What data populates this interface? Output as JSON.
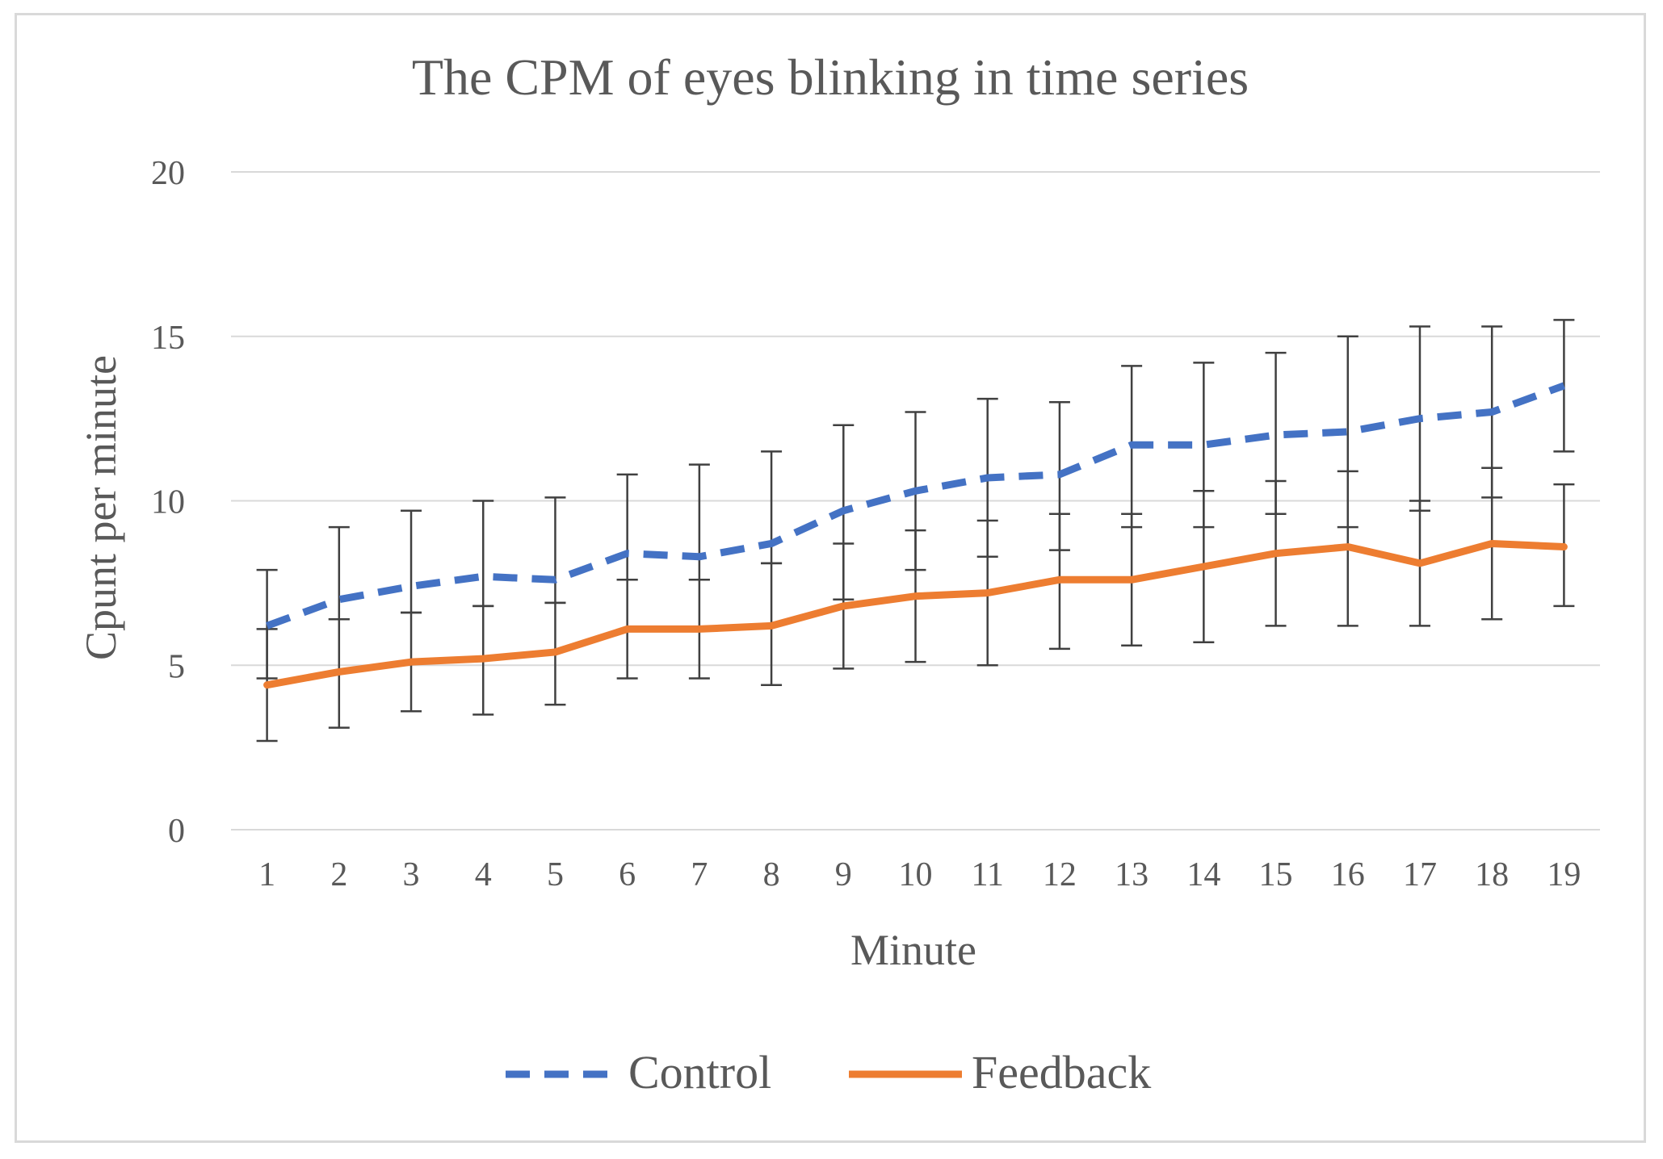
{
  "chart_data": {
    "type": "line",
    "title": "The CPM of eyes blinking in time series",
    "xlabel": "Minute",
    "ylabel": "Cpunt per minute",
    "ylim": [
      0,
      20
    ],
    "yticks": [
      0,
      5,
      10,
      15,
      20
    ],
    "grid": true,
    "legend_position": "bottom",
    "categories": [
      "1",
      "2",
      "3",
      "4",
      "5",
      "6",
      "7",
      "8",
      "9",
      "10",
      "11",
      "12",
      "13",
      "14",
      "15",
      "16",
      "17",
      "18",
      "19"
    ],
    "series": [
      {
        "name": "Control",
        "color": "#4472c4",
        "dash": "dashed",
        "values": [
          6.2,
          7.0,
          7.4,
          7.7,
          7.6,
          8.4,
          8.3,
          8.7,
          9.7,
          10.3,
          10.7,
          10.8,
          11.7,
          11.7,
          12.0,
          12.1,
          12.5,
          12.7,
          13.5
        ],
        "err_high": [
          7.9,
          9.2,
          9.7,
          10.0,
          10.1,
          10.8,
          11.1,
          11.5,
          12.3,
          12.7,
          13.1,
          13.0,
          14.1,
          14.2,
          14.5,
          15.0,
          15.3,
          15.3,
          15.5
        ],
        "err_low": [
          4.6,
          6.4,
          6.6,
          6.8,
          6.9,
          7.6,
          7.6,
          8.1,
          7.0,
          7.9,
          8.3,
          8.5,
          9.2,
          9.2,
          9.6,
          9.2,
          9.7,
          10.1,
          11.5
        ]
      },
      {
        "name": "Feedback",
        "color": "#ed7d31",
        "dash": "solid",
        "values": [
          4.4,
          4.8,
          5.1,
          5.2,
          5.4,
          6.1,
          6.1,
          6.2,
          6.8,
          7.1,
          7.2,
          7.6,
          7.6,
          8.0,
          8.4,
          8.6,
          8.1,
          8.7,
          8.6
        ],
        "err_high": [
          6.1,
          6.4,
          6.6,
          6.8,
          6.9,
          7.6,
          7.6,
          8.1,
          8.7,
          9.1,
          9.4,
          9.6,
          9.6,
          10.3,
          10.6,
          10.9,
          10.0,
          11.0,
          10.5
        ],
        "err_low": [
          2.7,
          3.1,
          3.6,
          3.5,
          3.8,
          4.6,
          4.6,
          4.4,
          4.9,
          5.1,
          5.0,
          5.5,
          5.6,
          5.7,
          6.2,
          6.2,
          6.2,
          6.4,
          6.8
        ]
      }
    ]
  }
}
